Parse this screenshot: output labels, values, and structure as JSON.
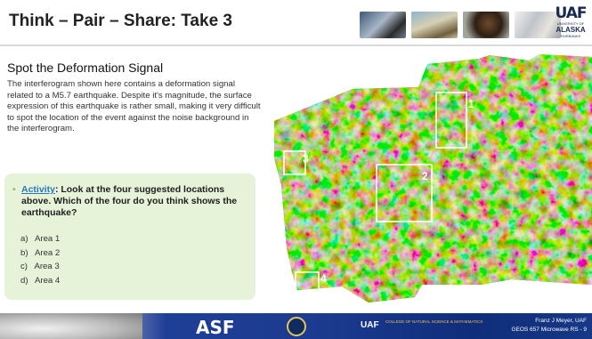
{
  "header": {
    "title": "Think – Pair – Share: Take 3",
    "logo": {
      "mark": "UAF",
      "top": "UNIVERSITY OF",
      "middle": "ALASKA",
      "bottom": "FAIRBANKS"
    }
  },
  "content": {
    "section_title": "Spot the Deformation Signal",
    "paragraph": "The interferogram shown here contains a deformation signal related to a M5.7 earthquake. Despite it's magnitude, the surface expression of this earthquake is rather small, making it very difficult to spot the location of the event against the noise background in the interferogram.",
    "activity": {
      "link": "Activity",
      "prompt": ": Look at the four suggested locations above. Which of the four do you think shows the earthquake?",
      "options": [
        "a)   Area 1",
        "b)   Area 2",
        "c)   Area 3",
        "d)   Area 4"
      ]
    }
  },
  "interferogram": {
    "areas": [
      {
        "label": "1"
      },
      {
        "label": "2"
      },
      {
        "label": "3"
      },
      {
        "label": "4"
      }
    ],
    "colors": {
      "magenta": "#d22fc8",
      "cyan": "#2ec9d6",
      "yellow": "#d9d23a",
      "green": "#5aa53c",
      "blue": "#3a56c8"
    }
  },
  "footer": {
    "asf": "ASF",
    "uaf_mark": "UAF",
    "uaf_college": "COLLEGE OF NATURAL SCIENCE & MATHEMATICS",
    "credit_name": "Franz J Meyer, UAF",
    "credit_course": "GEOS 657 Microwave RS - 9"
  }
}
